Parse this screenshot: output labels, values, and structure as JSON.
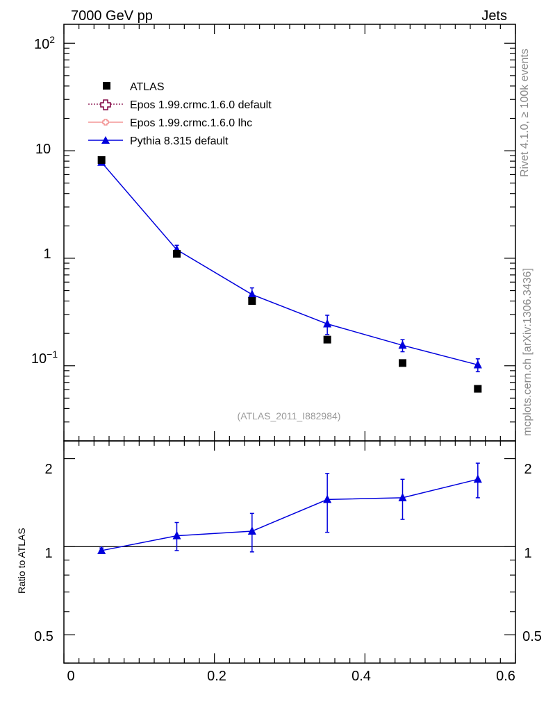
{
  "header": {
    "left": "7000 GeV pp",
    "right": "Jets"
  },
  "side": {
    "rivet": "Rivet 4.1.0, ≥ 100k events",
    "source": "mcplots.cern.ch [arXiv:1306.3436]"
  },
  "watermark": "(ATLAS_2011_I882984)",
  "legend": [
    {
      "label": "ATLAS",
      "color": "#000000",
      "marker": "square"
    },
    {
      "label": "Epos 1.99.crmc.1.6.0 default",
      "color": "#800040",
      "marker": "open-cross"
    },
    {
      "label": "Epos 1.99.crmc.1.6.0 lhc",
      "color": "#f08080",
      "marker": "small-cross"
    },
    {
      "label": "Pythia 8.315 default",
      "color": "#0000dd",
      "marker": "triangle"
    }
  ],
  "chart_data": [
    {
      "type": "scatter",
      "panel": "main",
      "yscale": "log",
      "xlim": [
        0,
        0.6
      ],
      "ylim": [
        0.02,
        150
      ],
      "y_tick_labels": [
        "10^-1",
        "1",
        "10",
        "10^2"
      ],
      "series": [
        {
          "name": "ATLAS",
          "x": [
            0.05,
            0.15,
            0.25,
            0.35,
            0.45,
            0.55
          ],
          "y": [
            8.2,
            1.1,
            0.4,
            0.175,
            0.106,
            0.061
          ]
        },
        {
          "name": "Pythia 8.315 default",
          "x": [
            0.05,
            0.15,
            0.25,
            0.35,
            0.45,
            0.55
          ],
          "y": [
            7.8,
            1.2,
            0.46,
            0.245,
            0.155,
            0.102
          ],
          "yerr": [
            0.3,
            0.12,
            0.07,
            0.05,
            0.02,
            0.014
          ]
        }
      ]
    },
    {
      "type": "line",
      "panel": "ratio",
      "ylabel": "Ratio to ATLAS",
      "xlim": [
        0,
        0.6
      ],
      "ylim": [
        0.4,
        2.3
      ],
      "reference_line": 1,
      "x_tick_labels": [
        "0",
        "0.2",
        "0.4",
        "0.6"
      ],
      "y_tick_labels": [
        "0.5",
        "1",
        "2"
      ],
      "series": [
        {
          "name": "Pythia 8.315 default",
          "x": [
            0.05,
            0.15,
            0.25,
            0.35,
            0.45,
            0.55
          ],
          "y": [
            0.97,
            1.09,
            1.13,
            1.45,
            1.47,
            1.7
          ],
          "yerr": [
            0.02,
            0.12,
            0.17,
            0.33,
            0.23,
            0.23
          ]
        }
      ]
    }
  ]
}
